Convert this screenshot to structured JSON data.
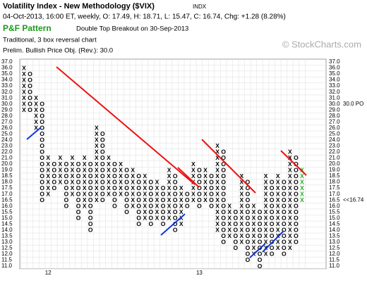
{
  "chart_data": {
    "type": "point-and-figure",
    "title": "Volatility Index - New Methodology ($VIX)",
    "exchange": "INDX",
    "subtitle": "04-Oct-2013, 16:00 ET, weekly, O: 17.49, H: 18.71, L: 15.47, C: 16.74, Chg: +1.28 (8.28%)",
    "pattern_label": "P&F Pattern",
    "pattern": "Double Top Breakout on 30-Sep-2013",
    "method": "Traditional, 3 box reversal chart",
    "objective_text": "Prelim. Bullish Price Obj. (Rev.): 30.0",
    "watermark": "© StockCharts.com",
    "objective": 30,
    "objective_label": "30.0 PO",
    "current_box": 16.5,
    "current_label": "<<16.74",
    "x_color": "#000000",
    "o_color": "#000000",
    "recent_color": "#22aa22",
    "yticks": [
      {
        "value": 37,
        "label": "37.0"
      },
      {
        "value": 36,
        "label": "36.0"
      },
      {
        "value": 35,
        "label": "35.0"
      },
      {
        "value": 34,
        "label": "34.0"
      },
      {
        "value": 33,
        "label": "33.0"
      },
      {
        "value": 32,
        "label": "32.0"
      },
      {
        "value": 31,
        "label": "31.0"
      },
      {
        "value": 30,
        "label": "30.0"
      },
      {
        "value": 29,
        "label": "29.0"
      },
      {
        "value": 28,
        "label": "28.0"
      },
      {
        "value": 27,
        "label": "27.0"
      },
      {
        "value": 26,
        "label": "26.0"
      },
      {
        "value": 25,
        "label": "25.0"
      },
      {
        "value": 24,
        "label": "24.0"
      },
      {
        "value": 23,
        "label": "23.0"
      },
      {
        "value": 22,
        "label": "22.0"
      },
      {
        "value": 21,
        "label": "21.0"
      },
      {
        "value": 20,
        "label": "20.0"
      },
      {
        "value": 19,
        "label": "19.0"
      },
      {
        "value": 18.5,
        "label": "18.5"
      },
      {
        "value": 18,
        "label": "18.0"
      },
      {
        "value": 17.5,
        "label": "17.5"
      },
      {
        "value": 17,
        "label": "17.0"
      },
      {
        "value": 16.5,
        "label": "16.5"
      },
      {
        "value": 16,
        "label": "16.0"
      },
      {
        "value": 15.5,
        "label": "15.5"
      },
      {
        "value": 15,
        "label": "15.0"
      },
      {
        "value": 14.5,
        "label": "14.5"
      },
      {
        "value": 14,
        "label": "14.0"
      },
      {
        "value": 13.5,
        "label": "13.5"
      },
      {
        "value": 13,
        "label": "13.0"
      },
      {
        "value": 12.5,
        "label": "12.5"
      },
      {
        "value": 12,
        "label": "12.0"
      },
      {
        "value": 11.5,
        "label": "11.5"
      },
      {
        "value": 11,
        "label": "11.0"
      }
    ],
    "x_labels": [
      {
        "label": "12",
        "column": 4
      },
      {
        "label": "13",
        "column": 29
      }
    ],
    "columns": [
      {
        "type": "X",
        "bottom": 29,
        "top": 36
      },
      {
        "type": "O",
        "bottom": 29,
        "top": 35
      },
      {
        "type": "X",
        "bottom": 26,
        "top": 31
      },
      {
        "type": "O",
        "bottom": 16.5,
        "top": 30
      },
      {
        "type": "X",
        "bottom": 17,
        "top": 21
      },
      {
        "type": "O",
        "bottom": 17.5,
        "top": 20
      },
      {
        "type": "X",
        "bottom": 18,
        "top": 21
      },
      {
        "type": "O",
        "bottom": 16,
        "top": 20
      },
      {
        "type": "X",
        "bottom": 17,
        "top": 21
      },
      {
        "type": "O",
        "bottom": 15,
        "top": 20
      },
      {
        "type": "X",
        "bottom": 16,
        "top": 21
      },
      {
        "type": "O",
        "bottom": 14,
        "top": 20
      },
      {
        "type": "X",
        "bottom": 16.5,
        "top": 26
      },
      {
        "type": "O",
        "bottom": 16.5,
        "top": 25
      },
      {
        "type": "X",
        "bottom": 17,
        "top": 21
      },
      {
        "type": "O",
        "bottom": 16,
        "top": 20
      },
      {
        "type": "X",
        "bottom": 17,
        "top": 20
      },
      {
        "type": "O",
        "bottom": 15.5,
        "top": 19
      },
      {
        "type": "X",
        "bottom": 16,
        "top": 19
      },
      {
        "type": "O",
        "bottom": 14.5,
        "top": 18.5
      },
      {
        "type": "X",
        "bottom": 15,
        "top": 18.5
      },
      {
        "type": "O",
        "bottom": 14.5,
        "top": 18
      },
      {
        "type": "X",
        "bottom": 15,
        "top": 18
      },
      {
        "type": "O",
        "bottom": 14.5,
        "top": 17.5
      },
      {
        "type": "X",
        "bottom": 15,
        "top": 19
      },
      {
        "type": "O",
        "bottom": 14,
        "top": 18.5
      },
      {
        "type": "X",
        "bottom": 14.5,
        "top": 17.5
      },
      {
        "type": "O",
        "bottom": 16,
        "top": 17
      },
      {
        "type": "X",
        "bottom": 16.5,
        "top": 20
      },
      {
        "type": "O",
        "bottom": 16,
        "top": 19
      },
      {
        "type": "X",
        "bottom": 16.5,
        "top": 19
      },
      {
        "type": "O",
        "bottom": 16,
        "top": 18.5
      },
      {
        "type": "X",
        "bottom": 14,
        "top": 23
      },
      {
        "type": "O",
        "bottom": 13,
        "top": 22
      },
      {
        "type": "X",
        "bottom": 13.5,
        "top": 16
      },
      {
        "type": "O",
        "bottom": 12.5,
        "top": 15.5
      },
      {
        "type": "X",
        "bottom": 13,
        "top": 18.5
      },
      {
        "type": "O",
        "bottom": 11.5,
        "top": 18
      },
      {
        "type": "X",
        "bottom": 12,
        "top": 16
      },
      {
        "type": "O",
        "bottom": 11,
        "top": 15.5
      },
      {
        "type": "X",
        "bottom": 12,
        "top": 18.5
      },
      {
        "type": "O",
        "bottom": 12,
        "top": 18
      },
      {
        "type": "X",
        "bottom": 12.5,
        "top": 18.5
      },
      {
        "type": "O",
        "bottom": 12,
        "top": 18
      },
      {
        "type": "X",
        "bottom": 12.5,
        "top": 22
      },
      {
        "type": "O",
        "bottom": 13,
        "top": 21
      },
      {
        "type": "X",
        "bottom": 16.5,
        "top": 19,
        "recent": true
      }
    ]
  }
}
